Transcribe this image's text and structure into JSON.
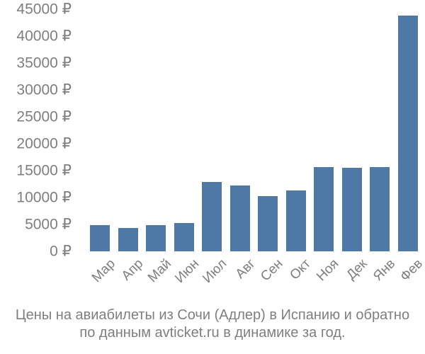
{
  "chart_data": {
    "type": "bar",
    "title": "",
    "xlabel": "",
    "ylabel": "",
    "categories": [
      "Мар",
      "Апр",
      "Май",
      "Июн",
      "Июл",
      "Авг",
      "Сен",
      "Окт",
      "Ноя",
      "Дек",
      "Янв",
      "Фев"
    ],
    "values": [
      4900,
      4400,
      4900,
      5300,
      12900,
      12300,
      10300,
      11300,
      15600,
      15500,
      15600,
      43800
    ],
    "ylim": [
      0,
      45000
    ],
    "ytick_step": 5000,
    "ytick_labels": [
      "0 ₽",
      "5000 ₽",
      "10000 ₽",
      "15000 ₽",
      "20000 ₽",
      "25000 ₽",
      "30000 ₽",
      "35000 ₽",
      "40000 ₽",
      "45000 ₽"
    ],
    "grid": false,
    "legend": null,
    "bar_color": "#4E79A7",
    "axis_text_color": "#7F7F7F"
  },
  "caption": {
    "line1": "Цены на авиабилеты из Сочи (Адлер) в Испанию и обратно",
    "line2": "по данным avticket.ru в динамике за год."
  }
}
